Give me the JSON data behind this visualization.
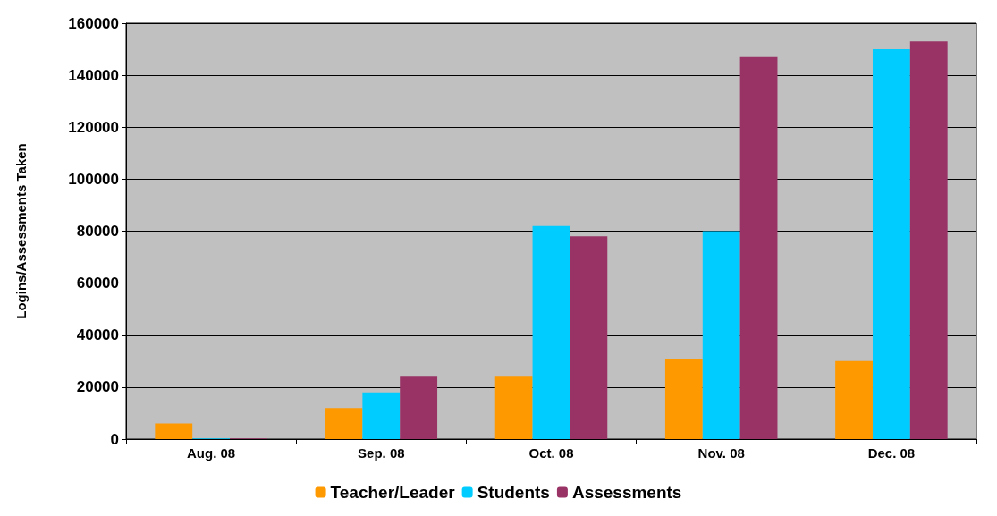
{
  "chart_data": {
    "type": "bar",
    "ylabel": "Logins/Assessments Taken",
    "categories": [
      "Aug. 08",
      "Sep. 08",
      "Oct. 08",
      "Nov. 08",
      "Dec. 08"
    ],
    "series": [
      {
        "name": "Teacher/Leader",
        "color": "#ff9900",
        "values": [
          6000,
          12000,
          24000,
          31000,
          30000
        ]
      },
      {
        "name": "Students",
        "color": "#00ccff",
        "values": [
          300,
          18000,
          82000,
          80000,
          150000
        ]
      },
      {
        "name": "Assessments",
        "color": "#993366",
        "values": [
          300,
          24000,
          78000,
          147000,
          153000
        ]
      }
    ],
    "ylim": [
      0,
      160000
    ],
    "yticks": [
      0,
      20000,
      40000,
      60000,
      80000,
      100000,
      120000,
      140000,
      160000
    ],
    "grid": "y",
    "legend": "bottom"
  }
}
